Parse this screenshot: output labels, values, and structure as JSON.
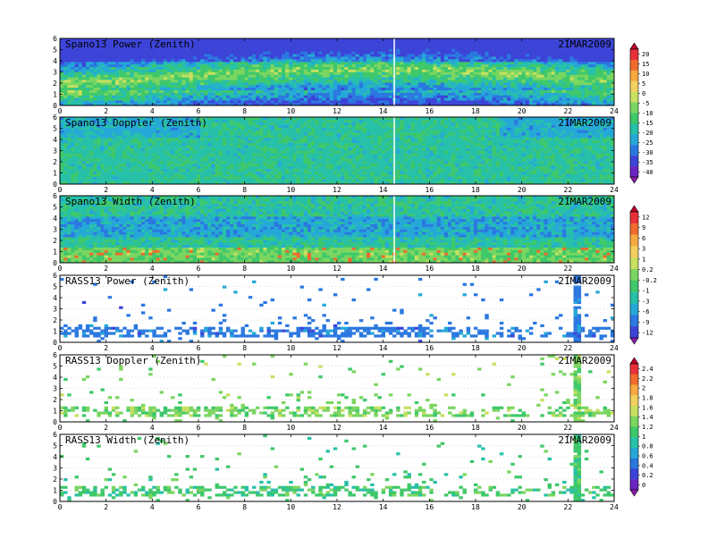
{
  "chart_data": [
    {
      "type": "heatmap",
      "title": "Spano13 Power (Zenith)",
      "date": "21MAR2009",
      "x": {
        "range": [
          0,
          24
        ],
        "ticks": [
          "0",
          "2",
          "4",
          "6",
          "8",
          "10",
          "12",
          "14",
          "16",
          "18",
          "20",
          "22",
          "24"
        ]
      },
      "y": {
        "range": [
          0,
          6
        ],
        "ticks": [
          "0",
          "1",
          "2",
          "3",
          "4",
          "5",
          "6"
        ]
      },
      "colorbar": "cb1"
    },
    {
      "type": "heatmap",
      "title": "Spano13 Doppler (Zenith)",
      "date": "21MAR2009",
      "x": {
        "range": [
          0,
          24
        ],
        "ticks": [
          "0",
          "2",
          "4",
          "6",
          "8",
          "10",
          "12",
          "14",
          "16",
          "18",
          "20",
          "22",
          "24"
        ]
      },
      "y": {
        "range": [
          0,
          6
        ],
        "ticks": [
          "0",
          "1",
          "2",
          "3",
          "4",
          "5",
          "6"
        ]
      },
      "colorbar": "cb1"
    },
    {
      "type": "heatmap",
      "title": "Spano13 Width (Zenith)",
      "date": "21MAR2009",
      "x": {
        "range": [
          0,
          24
        ],
        "ticks": [
          "0",
          "2",
          "4",
          "6",
          "8",
          "10",
          "12",
          "14",
          "16",
          "18",
          "20",
          "22",
          "24"
        ]
      },
      "y": {
        "range": [
          0,
          6
        ],
        "ticks": [
          "0",
          "1",
          "2",
          "3",
          "4",
          "5",
          "6"
        ]
      },
      "colorbar": "cb2"
    },
    {
      "type": "heatmap",
      "title": "RASS13 Power (Zenith)",
      "date": "21MAR2009",
      "x": {
        "range": [
          0,
          24
        ],
        "ticks": [
          "0",
          "2",
          "4",
          "6",
          "8",
          "10",
          "12",
          "14",
          "16",
          "18",
          "20",
          "22",
          "24"
        ]
      },
      "y": {
        "range": [
          0,
          6
        ],
        "ticks": [
          "0",
          "1",
          "2",
          "3",
          "4",
          "5",
          "6"
        ]
      },
      "colorbar": "cb2"
    },
    {
      "type": "heatmap",
      "title": "RASS13 Doppler (Zenith)",
      "date": "21MAR2009",
      "x": {
        "range": [
          0,
          24
        ],
        "ticks": [
          "0",
          "2",
          "4",
          "6",
          "8",
          "10",
          "12",
          "14",
          "16",
          "18",
          "20",
          "22",
          "24"
        ]
      },
      "y": {
        "range": [
          0,
          6
        ],
        "ticks": [
          "0",
          "1",
          "2",
          "3",
          "4",
          "5",
          "6"
        ]
      },
      "colorbar": "cb3"
    },
    {
      "type": "heatmap",
      "title": "RASS13 Width (Zenith)",
      "date": "21MAR2009",
      "x": {
        "range": [
          0,
          24
        ],
        "ticks": [
          "0",
          "2",
          "4",
          "6",
          "8",
          "10",
          "12",
          "14",
          "16",
          "18",
          "20",
          "22",
          "24"
        ]
      },
      "y": {
        "range": [
          0,
          6
        ],
        "ticks": [
          "0",
          "1",
          "2",
          "3",
          "4",
          "5",
          "6"
        ]
      },
      "colorbar": "cb3"
    }
  ],
  "colorbars": {
    "cb1": {
      "labels": [
        "20",
        "15",
        "10",
        "5",
        "0",
        "-5",
        "-10",
        "-15",
        "-20",
        "-25",
        "-30",
        "-35",
        "-40"
      ],
      "colors": [
        "#c0002a",
        "#e8303a",
        "#f06a2c",
        "#f7a840",
        "#f2d060",
        "#c8e060",
        "#7ad660",
        "#3ec86a",
        "#27c0a8",
        "#25a8d8",
        "#2a78e0",
        "#3c44d8",
        "#6a26c0",
        "#8a1ca8"
      ]
    },
    "cb2": {
      "labels": [
        "12",
        "9",
        "6",
        "3",
        "1",
        "0.2",
        "-0.2",
        "-1",
        "-3",
        "-6",
        "-9",
        "-12"
      ],
      "colors": [
        "#c0002a",
        "#e8303a",
        "#f06a2c",
        "#f7a840",
        "#f2d060",
        "#c8e060",
        "#7ad660",
        "#3ec86a",
        "#27c0a8",
        "#25a8d8",
        "#2a78e0",
        "#3c44d8",
        "#8a1ca8"
      ]
    },
    "cb3": {
      "labels": [
        "2.4",
        "2.2",
        "2",
        "1.8",
        "1.6",
        "1.4",
        "1.2",
        "1",
        "0.8",
        "0.6",
        "0.4",
        "0.2",
        "0"
      ],
      "colors": [
        "#c0002a",
        "#e8303a",
        "#f06a2c",
        "#f7a840",
        "#f2d060",
        "#c8e060",
        "#7ad660",
        "#3ec86a",
        "#27c0a8",
        "#25a8d8",
        "#2a78e0",
        "#3c44d8",
        "#6a26c0",
        "#8a1ca8"
      ]
    }
  }
}
